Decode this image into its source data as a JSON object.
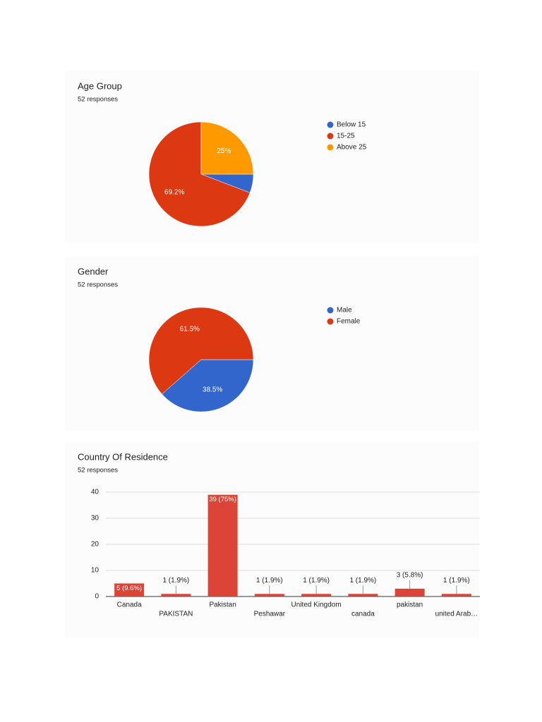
{
  "chart_data": [
    {
      "type": "pie",
      "title": "Age Group",
      "subtitle": "52 responses",
      "categories": [
        "Below 15",
        "15-25",
        "Above 25"
      ],
      "values": [
        5.8,
        69.2,
        25
      ],
      "value_labels": [
        null,
        "69.2%",
        "25%"
      ],
      "colors": [
        "#3366cc",
        "#dc3912",
        "#ff9900"
      ],
      "legend": "right"
    },
    {
      "type": "pie",
      "title": "Gender",
      "subtitle": "52 responses",
      "categories": [
        "Male",
        "Female"
      ],
      "values": [
        38.5,
        61.5
      ],
      "value_labels": [
        "38.5%",
        "61.5%"
      ],
      "colors": [
        "#3366cc",
        "#dc3912"
      ],
      "legend": "right"
    },
    {
      "type": "bar",
      "title": "Country Of Residence",
      "subtitle": "52 responses",
      "categories": [
        "Canada",
        "PAKISTAN",
        "Pakistan",
        "Peshawar",
        "United Kingdom",
        "canada",
        "pakistan",
        "united Arab…"
      ],
      "values": [
        5,
        1,
        39,
        1,
        1,
        1,
        3,
        1
      ],
      "value_labels": [
        "5 (9.6%)",
        "1 (1.9%)",
        "39 (75%)",
        "1 (1.9%)",
        "1 (1.9%)",
        "1 (1.9%)",
        "3 (5.8%)",
        "1 (1.9%)"
      ],
      "color": "#db4437",
      "ylim": [
        0,
        40
      ],
      "yticks": [
        0,
        10,
        20,
        30,
        40
      ],
      "grid": true
    }
  ]
}
